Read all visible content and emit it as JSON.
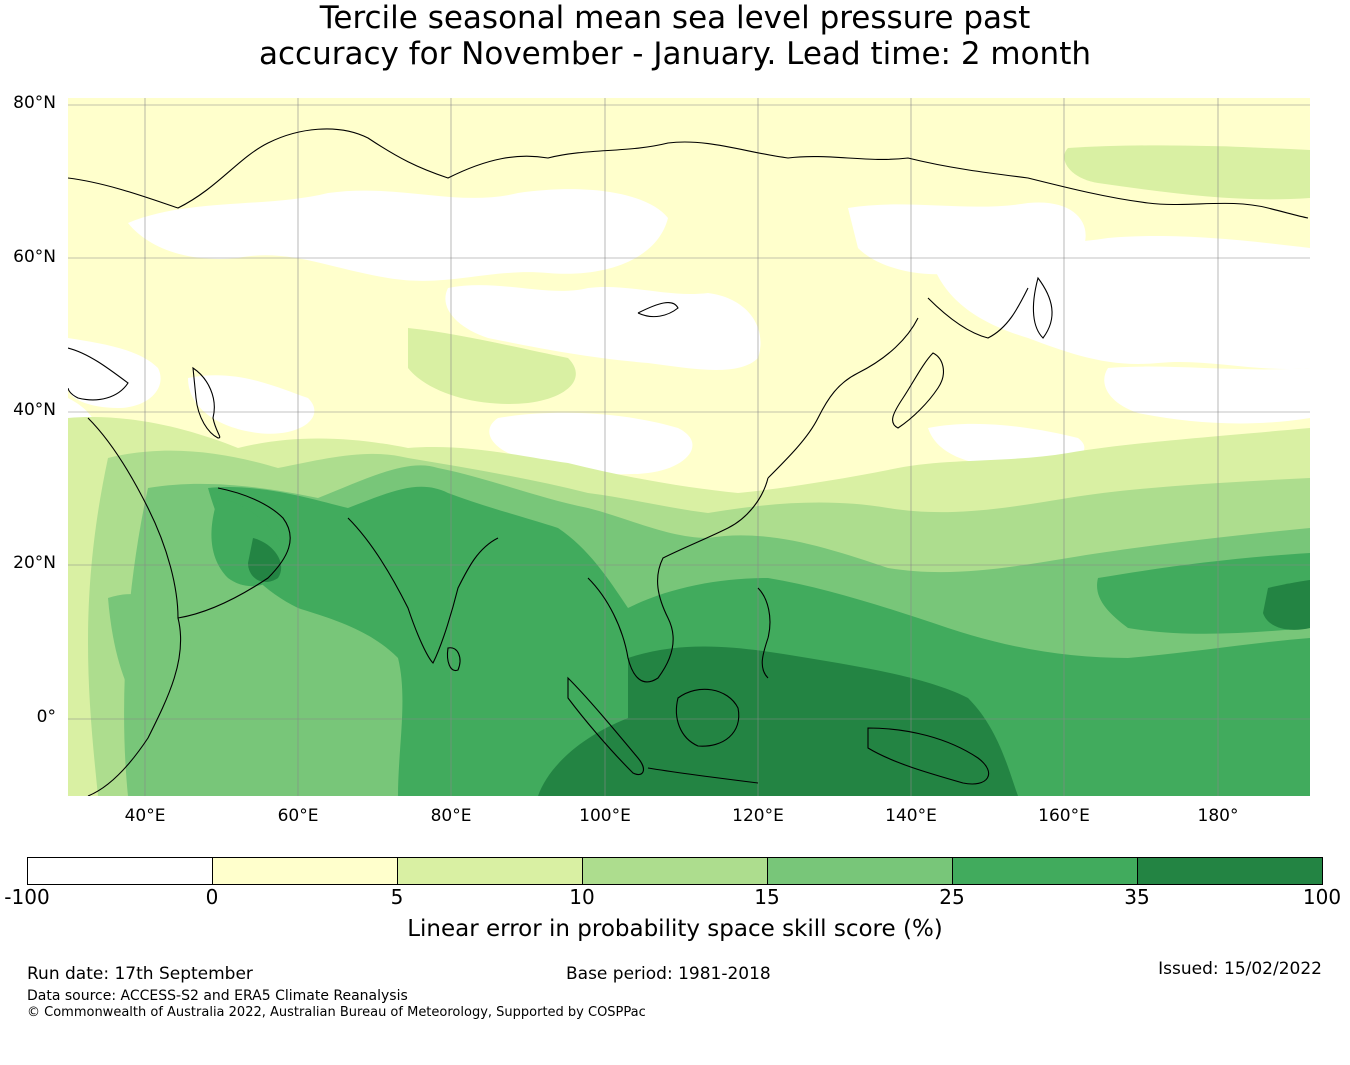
{
  "title": {
    "line1": "Tercile seasonal mean sea level pressure past",
    "line2": "accuracy for November - January. Lead time: 2 month"
  },
  "map": {
    "lat_labels": [
      "80°N",
      "60°N",
      "40°N",
      "20°N",
      "0°"
    ],
    "lon_labels": [
      "40°E",
      "60°E",
      "80°E",
      "100°E",
      "120°E",
      "140°E",
      "160°E",
      "180°"
    ],
    "lat_range": [
      -10,
      80
    ],
    "lon_range": [
      30,
      192
    ],
    "base_color": "#ffffcc"
  },
  "colorbar": {
    "title": "Linear error in probability space skill score (%)",
    "ticks": [
      "-100",
      "0",
      "5",
      "10",
      "15",
      "25",
      "35",
      "100"
    ],
    "colors": [
      "#ffffff",
      "#ffffcc",
      "#d9f0a3",
      "#addd8e",
      "#78c679",
      "#41ab5d",
      "#238443"
    ]
  },
  "footer": {
    "run_date": "Run date: 17th September",
    "base_period": "Base period: 1981-2018",
    "issued": "Issued: 15/02/2022",
    "data_source": "Data source: ACCESS-S2 and ERA5 Climate Reanalysis",
    "copyright": "© Commonwealth of Australia 2022, Australian Bureau of Meteorology, Supported by COSPPac"
  }
}
